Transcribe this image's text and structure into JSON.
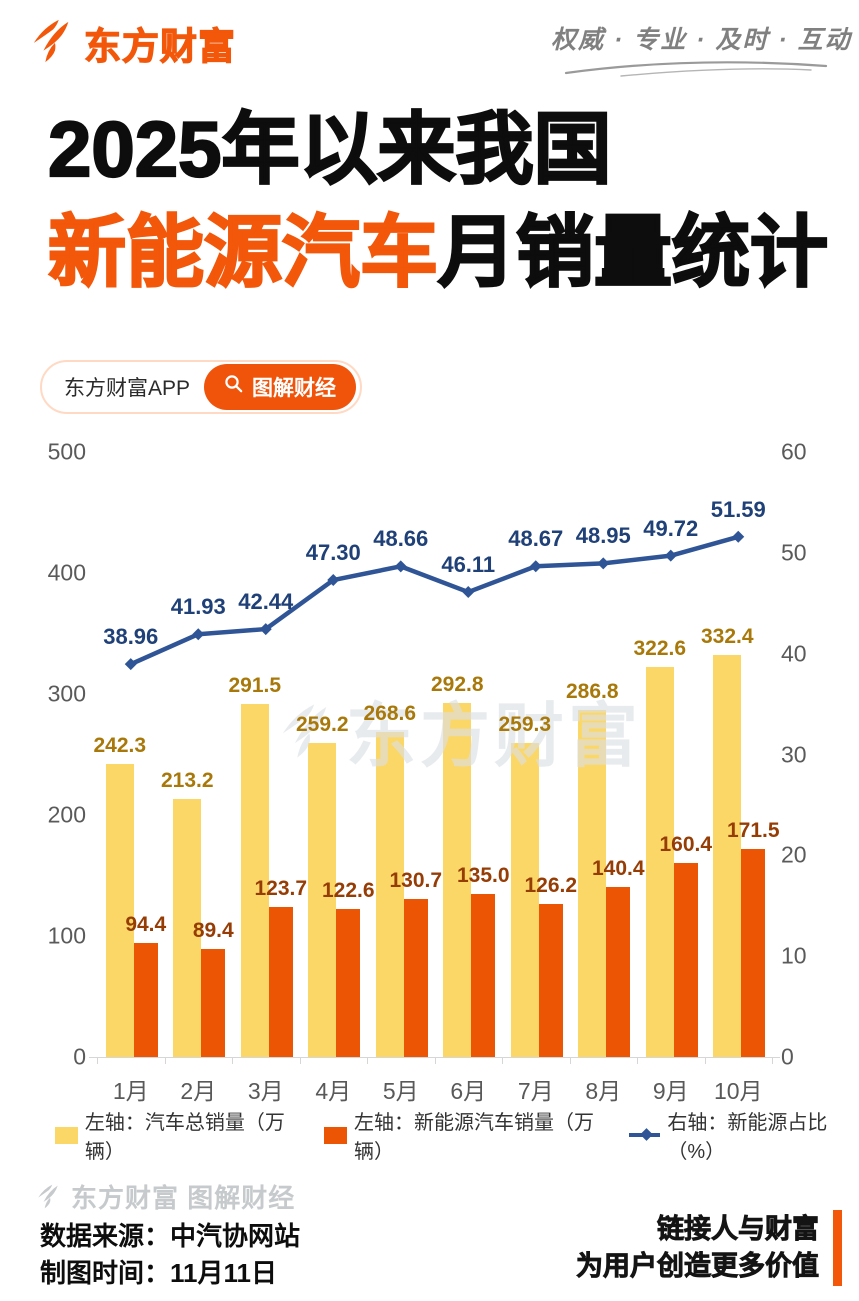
{
  "header": {
    "logo_text": "东方财富",
    "tagline": "权威 · 专业 · 及时 · 互动"
  },
  "title": {
    "line1": "2025年以来我国",
    "highlight": "新能源汽车",
    "line2_rest": "月销量统计"
  },
  "app_badge": {
    "app_label": "东方财富APP",
    "button_label": "图解财经"
  },
  "chart_data": {
    "type": "bar+line dual-axis",
    "categories": [
      "1月",
      "2月",
      "3月",
      "4月",
      "5月",
      "6月",
      "7月",
      "8月",
      "9月",
      "10月"
    ],
    "series": [
      {
        "name": "左轴：汽车总销量（万辆）",
        "chart_type": "bar",
        "axis": "left",
        "color": "#FBD768",
        "label_color": "#A8790A",
        "values": [
          242.3,
          213.2,
          291.5,
          259.2,
          268.6,
          292.8,
          259.3,
          286.8,
          322.6,
          332.4
        ],
        "labels": [
          "242.3",
          "213.2",
          "291.5",
          "259.2",
          "268.6",
          "292.8",
          "259.3",
          "286.8",
          "322.6",
          "332.4"
        ]
      },
      {
        "name": "左轴：新能源汽车销量（万辆）",
        "chart_type": "bar",
        "axis": "left",
        "color": "#EB5504",
        "label_color": "#963C05",
        "values": [
          94.4,
          89.4,
          123.7,
          122.6,
          130.7,
          135.0,
          126.2,
          140.4,
          160.4,
          171.5
        ],
        "labels": [
          "94.4",
          "89.4",
          "123.7",
          "122.6",
          "130.7",
          "135.0",
          "126.2",
          "140.4",
          "160.4",
          "171.5"
        ]
      },
      {
        "name": "右轴：新能源占比（%）",
        "chart_type": "line",
        "axis": "right",
        "color": "#2F5597",
        "label_color": "#1F4178",
        "values": [
          38.96,
          41.93,
          42.44,
          47.3,
          48.66,
          46.11,
          48.67,
          48.95,
          49.72,
          51.59
        ],
        "labels": [
          "38.96",
          "41.93",
          "42.44",
          "47.30",
          "48.66",
          "46.11",
          "48.67",
          "48.95",
          "49.72",
          "51.59"
        ]
      }
    ],
    "left_axis": {
      "min": 0,
      "max": 500,
      "ticks": [
        0,
        100,
        200,
        300,
        400,
        500
      ]
    },
    "right_axis": {
      "min": 0,
      "max": 60,
      "ticks": [
        0,
        10,
        20,
        30,
        40,
        50,
        60
      ]
    },
    "grid": false,
    "legend_position": "bottom"
  },
  "watermarks": {
    "chart": "东方财富",
    "footer": "东方财富 图解财经"
  },
  "footer": {
    "source": "数据来源：中汽协网站",
    "date": "制图时间：11月11日",
    "slogan_line1": "链接人与财富",
    "slogan_line2": "为用户创造更多价值"
  }
}
